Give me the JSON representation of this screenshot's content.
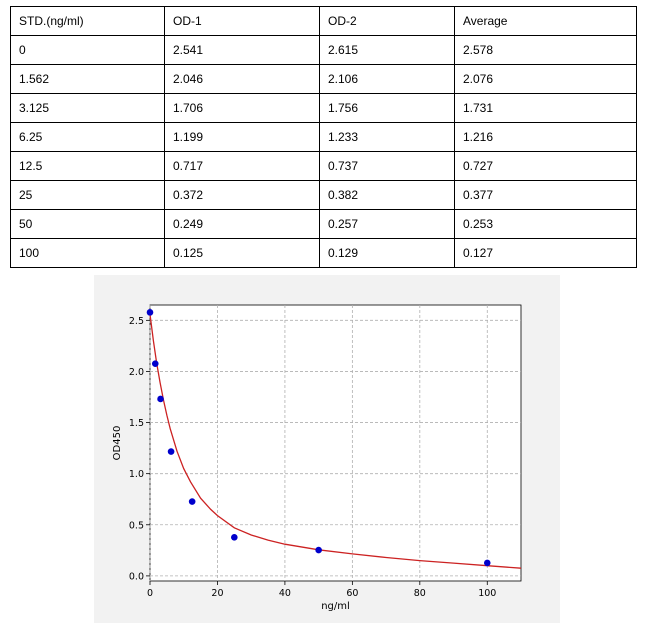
{
  "table": {
    "headers": [
      "STD.(ng/ml)",
      "OD-1",
      "OD-2",
      "Average"
    ],
    "rows": [
      [
        "0",
        "2.541",
        "2.615",
        "2.578"
      ],
      [
        "1.562",
        "2.046",
        "2.106",
        "2.076"
      ],
      [
        "3.125",
        "1.706",
        "1.756",
        "1.731"
      ],
      [
        "6.25",
        "1.199",
        "1.233",
        "1.216"
      ],
      [
        "12.5",
        "0.717",
        "0.737",
        "0.727"
      ],
      [
        "25",
        "0.372",
        "0.382",
        "0.377"
      ],
      [
        "50",
        "0.249",
        "0.257",
        "0.253"
      ],
      [
        "100",
        "0.125",
        "0.129",
        "0.127"
      ]
    ]
  },
  "chart_data": {
    "type": "scatter",
    "xlabel": "ng/ml",
    "ylabel": "OD450",
    "xlim": [
      0,
      110
    ],
    "ylim": [
      -0.05,
      2.65
    ],
    "x_ticks": [
      0,
      20,
      40,
      60,
      80,
      100
    ],
    "y_ticks": [
      0.0,
      0.5,
      1.0,
      1.5,
      2.0,
      2.5
    ],
    "x_tick_labels": [
      "0",
      "20",
      "40",
      "60",
      "80",
      "100"
    ],
    "y_tick_labels": [
      "0.0",
      "0.5",
      "1.0",
      "1.5",
      "2.0",
      "2.5"
    ],
    "grid": true,
    "series": [
      {
        "kind": "points",
        "color": "#0000cc",
        "x": [
          0,
          1.562,
          3.125,
          6.25,
          12.5,
          25,
          50,
          100
        ],
        "y": [
          2.578,
          2.076,
          1.731,
          1.216,
          0.727,
          0.377,
          0.253,
          0.127
        ]
      },
      {
        "kind": "fit-curve",
        "color": "#cc2222",
        "x": [
          0,
          1,
          2,
          3,
          4,
          5,
          6,
          8,
          10,
          12,
          15,
          18,
          20,
          25,
          30,
          35,
          40,
          50,
          60,
          70,
          80,
          90,
          100,
          110
        ],
        "y": [
          2.56,
          2.3,
          2.08,
          1.89,
          1.72,
          1.57,
          1.44,
          1.22,
          1.05,
          0.92,
          0.76,
          0.65,
          0.59,
          0.47,
          0.4,
          0.35,
          0.31,
          0.255,
          0.215,
          0.18,
          0.15,
          0.125,
          0.1,
          0.075
        ]
      }
    ]
  }
}
